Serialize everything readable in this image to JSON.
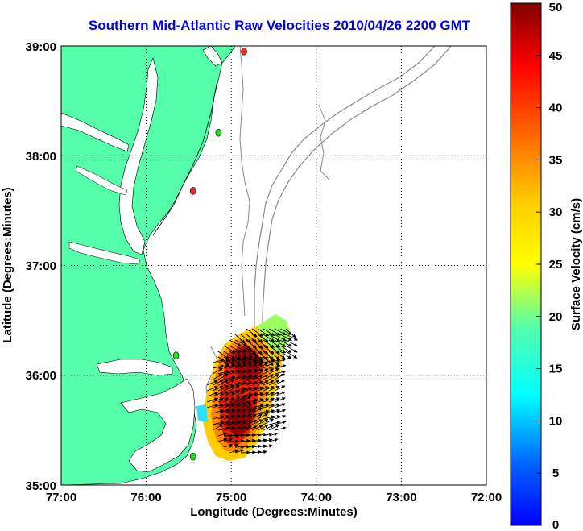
{
  "title": "Southern Mid-Atlantic Raw Velocities 2010/04/26 2200 GMT",
  "map": {
    "xlabel": "Longitude (Degrees:Minutes)",
    "ylabel": "Latitude (Degrees:Minutes)",
    "lon_ticks": [
      "77:00",
      "76:00",
      "75:00",
      "74:00",
      "73:00",
      "72:00"
    ],
    "lat_ticks": [
      "39:00",
      "38:00",
      "37:00",
      "36:00",
      "35:00"
    ],
    "lon_range": [
      -77,
      -72
    ],
    "lat_range": [
      35,
      39
    ],
    "grid": true,
    "land_color": "#55ffaa",
    "station_markers": [
      {
        "lon": -74.85,
        "lat": 38.95,
        "color": "#ff2222"
      },
      {
        "lon": -75.15,
        "lat": 38.21,
        "color": "#22dd22"
      },
      {
        "lon": -75.45,
        "lat": 37.68,
        "color": "#ff2222"
      },
      {
        "lon": -75.65,
        "lat": 36.18,
        "color": "#22dd22"
      },
      {
        "lon": -75.45,
        "lat": 35.26,
        "color": "#22dd22"
      }
    ]
  },
  "colorbar": {
    "label": "Surface Velocity (cm/s)",
    "ticks": [
      "0",
      "5",
      "10",
      "15",
      "20",
      "25",
      "30",
      "35",
      "40",
      "45",
      "50"
    ],
    "min": 0,
    "max": 50,
    "colormap": "jet"
  }
}
